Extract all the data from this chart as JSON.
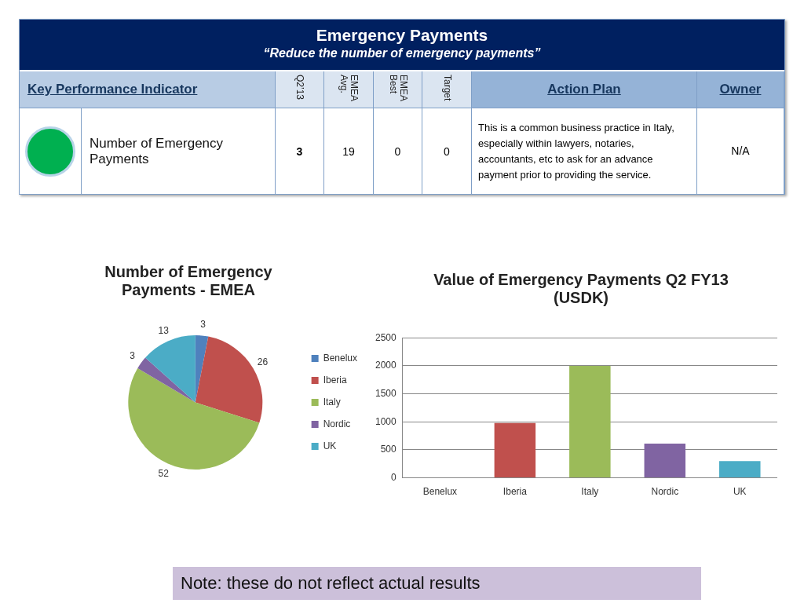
{
  "chart_data": [
    {
      "type": "other",
      "title": "Emergency Payments",
      "subtitle": "“Reduce the number of emergency payments”",
      "annotations": [
        "Key Performance Indicator",
        "Q2’13",
        "EMEA Avg.",
        "EMEA Best",
        "Target",
        "Action Plan",
        "Owner",
        "Number of Emergency Payments",
        "3",
        "19",
        "0",
        "0",
        "This is a common business practice in Italy,  especially within lawyers, notaries, accountants, etc to ask for an advance payment prior to providing the service.",
        "N/A"
      ]
    },
    {
      "type": "pie",
      "title": "Number of Emergency Payments - EMEA",
      "categories": [
        "Benelux",
        "Iberia",
        "Italy",
        "Nordic",
        "UK"
      ],
      "values": [
        3,
        26,
        52,
        3,
        13
      ],
      "colors": [
        "#4f81bd",
        "#c0504d",
        "#9bbb59",
        "#8064a2",
        "#4bacc6"
      ],
      "data_labels": true,
      "legend": "right"
    },
    {
      "type": "bar",
      "title": "Value of Emergency Payments  Q2 FY13 (USDK)",
      "categories": [
        "Benelux",
        "Iberia",
        "Italy",
        "Nordic",
        "UK"
      ],
      "values": [
        10,
        980,
        2000,
        610,
        300
      ],
      "colors": [
        "#4f81bd",
        "#c0504d",
        "#9bbb59",
        "#8064a2",
        "#4bacc6"
      ],
      "ylim": [
        0,
        2500
      ],
      "yticks": [
        0,
        500,
        1000,
        1500,
        2000,
        2500
      ],
      "grid": "y",
      "legend": false,
      "annotations": [
        "Note:  these do not reflect actual results"
      ]
    }
  ]
}
